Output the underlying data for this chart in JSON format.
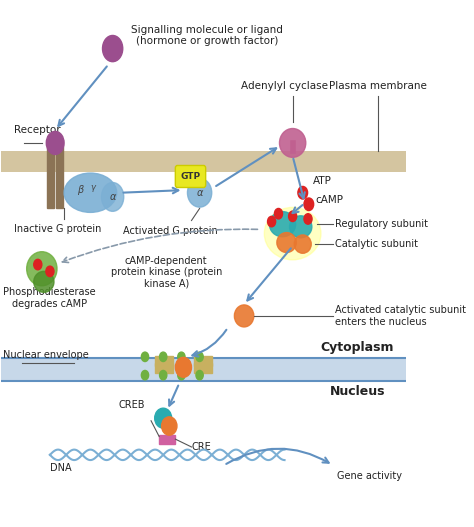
{
  "bg_color": "#ffffff",
  "membrane_color": "#d4c5a0",
  "cytoplasm_label": "Cytoplasm",
  "nucleus_label": "Nucleus",
  "labels": {
    "receptor": "Receptor",
    "signalling": "Signalling molecule or ligand\n(hormone or growth factor)",
    "adenylyl_cyclase": "Adenylyl cyclase",
    "plasma_membrane": "Plasma membrane",
    "inactive_g": "Inactive G protein",
    "activated_g": "Activated G protein",
    "atp": "ATP",
    "camp": "cAMP",
    "regulatory": "Regulatory subunit",
    "catalytic": "Catalytic subunit",
    "phosphodiesterase": "Phosphodiesterase\ndegrades cAMP",
    "camp_dependent": "cAMP-dependent\nprotein kinase (protein\nkinase A)",
    "activated_catalytic": "Activated catalytic subunit\nenters the nucleus",
    "nuclear_envelope": "Nuclear envelope",
    "creb": "CREB",
    "cre": "CRE",
    "dna": "DNA",
    "gene_activity": "Gene activity"
  },
  "colors": {
    "receptor_body": "#8B7355",
    "receptor_ball": "#9B4E8E",
    "signalling_ball": "#9B4E8E",
    "g_protein_blue": "#7BAFD4",
    "gtp_yellow": "#E8E822",
    "gtp_text": "#333333",
    "adenylyl_cyclase": "#C06090",
    "arrow_blue": "#6090C0",
    "camp_red": "#DD2222",
    "regulatory_teal": "#2AABB0",
    "catalytic_orange": "#E87830",
    "phospho_green": "#70B040",
    "phospho_dark": "#50902A",
    "dna_wave": "#7BAFD4",
    "dna_pink": "#D060A0",
    "nuclear_line": "#6090C0",
    "label_line": "#555555",
    "dashed_line": "#8899AA",
    "pore_tan": "#C8B060"
  }
}
